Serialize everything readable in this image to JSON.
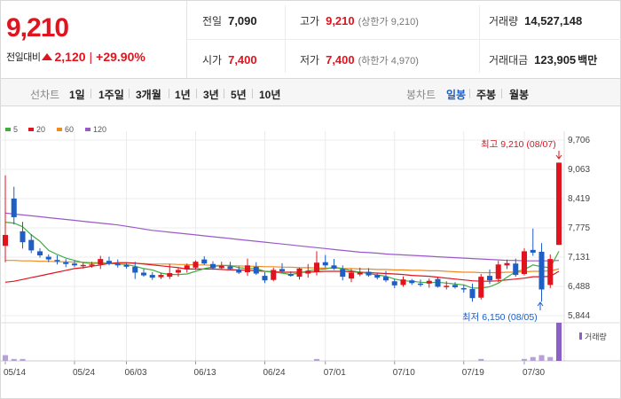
{
  "quote": {
    "price": "9,210",
    "change_label": "전일대비",
    "change_value": "2,120",
    "change_pct": "+29.90%",
    "prev_close_label": "전일",
    "prev_close": "7,090",
    "high_label": "고가",
    "high": "9,210",
    "upper_limit": "(상한가 9,210)",
    "volume_label": "거래량",
    "volume": "14,527,148",
    "open_label": "시가",
    "open": "7,400",
    "low_label": "저가",
    "low": "7,400",
    "lower_limit": "(하한가 4,970)",
    "trade_value_label": "거래대금",
    "trade_value": "123,905",
    "trade_value_unit": "백만"
  },
  "toolbar": {
    "line_chart_label": "선차트",
    "line_options": [
      "1일",
      "1주일",
      "3개월",
      "1년",
      "3년",
      "5년",
      "10년"
    ],
    "candle_chart_label": "봉차트",
    "candle_options": [
      "일봉",
      "주봉",
      "월봉"
    ],
    "selected_candle": "일봉"
  },
  "colors": {
    "up": "#e0141e",
    "down": "#1f5fc4",
    "ma5": "#3fae3f",
    "ma20": "#e0141e",
    "ma60": "#f08a1e",
    "ma120": "#9a59c8",
    "volume": "#b8a0d8",
    "volume_last": "#8a5fc8"
  },
  "chart_data": {
    "type": "candlestick",
    "legend": [
      "5",
      "20",
      "60",
      "120"
    ],
    "y_ticks": [
      "9,706",
      "9,063",
      "8,419",
      "7,775",
      "7,131",
      "6,488",
      "5,844"
    ],
    "ylim": [
      5844,
      9706
    ],
    "x_ticks": [
      "05/14",
      "05/24",
      "06/03",
      "06/13",
      "06/24",
      "07/01",
      "07/10",
      "07/19",
      "07/30"
    ],
    "x_tick_index": [
      0,
      8,
      14,
      22,
      30,
      37,
      45,
      53,
      60
    ],
    "high_annotation": "최고 9,210 (08/07)",
    "low_annotation": "최저 6,150 (08/05)",
    "volume_label": "거래량",
    "candles": [
      [
        7380,
        8930,
        7020,
        7620
      ],
      [
        8420,
        8680,
        7850,
        8010
      ],
      [
        7700,
        7910,
        7320,
        7460
      ],
      [
        7510,
        7640,
        7220,
        7280
      ],
      [
        7260,
        7330,
        7120,
        7170
      ],
      [
        7140,
        7190,
        7020,
        7080
      ],
      [
        7070,
        7170,
        6970,
        7040
      ],
      [
        7020,
        7090,
        6910,
        6980
      ],
      [
        6990,
        7060,
        6910,
        6950
      ],
      [
        6940,
        7010,
        6880,
        6960
      ],
      [
        6960,
        7030,
        6900,
        6970
      ],
      [
        6970,
        7160,
        6870,
        7090
      ],
      [
        7050,
        7140,
        6950,
        6990
      ],
      [
        6990,
        7080,
        6900,
        6950
      ],
      [
        6960,
        7000,
        6880,
        6920
      ],
      [
        6920,
        7030,
        6650,
        6790
      ],
      [
        6790,
        6870,
        6700,
        6730
      ],
      [
        6740,
        6800,
        6630,
        6680
      ],
      [
        6690,
        6790,
        6650,
        6740
      ],
      [
        6700,
        6980,
        6650,
        6780
      ],
      [
        6790,
        6900,
        6700,
        6850
      ],
      [
        6860,
        6990,
        6790,
        6950
      ],
      [
        6900,
        7060,
        6850,
        7030
      ],
      [
        7080,
        7150,
        6960,
        6990
      ],
      [
        6980,
        7040,
        6850,
        6890
      ],
      [
        6890,
        7030,
        6850,
        6940
      ],
      [
        6930,
        7030,
        6840,
        6870
      ],
      [
        6860,
        6930,
        6760,
        6790
      ],
      [
        6800,
        7100,
        6720,
        6950
      ],
      [
        6920,
        7020,
        6740,
        6770
      ],
      [
        6720,
        6800,
        6560,
        6620
      ],
      [
        6630,
        6900,
        6600,
        6850
      ],
      [
        6870,
        7000,
        6790,
        6820
      ],
      [
        6760,
        6820,
        6700,
        6720
      ],
      [
        6700,
        6900,
        6640,
        6880
      ],
      [
        6770,
        6980,
        6680,
        6830
      ],
      [
        6800,
        7260,
        6730,
        7010
      ],
      [
        7020,
        7180,
        6900,
        6950
      ],
      [
        6950,
        7090,
        6850,
        6880
      ],
      [
        6870,
        6950,
        6620,
        6700
      ],
      [
        6660,
        6870,
        6580,
        6790
      ],
      [
        6750,
        6900,
        6710,
        6800
      ],
      [
        6810,
        6890,
        6700,
        6730
      ],
      [
        6740,
        6790,
        6640,
        6680
      ],
      [
        6700,
        6830,
        6580,
        6620
      ],
      [
        6600,
        6650,
        6450,
        6510
      ],
      [
        6520,
        6710,
        6480,
        6640
      ],
      [
        6620,
        6650,
        6520,
        6560
      ],
      [
        6550,
        6640,
        6480,
        6530
      ],
      [
        6550,
        6660,
        6460,
        6610
      ],
      [
        6650,
        6700,
        6460,
        6480
      ],
      [
        6500,
        6600,
        6420,
        6500
      ],
      [
        6520,
        6580,
        6440,
        6470
      ],
      [
        6450,
        6520,
        6350,
        6420
      ],
      [
        6430,
        6550,
        6150,
        6230
      ],
      [
        6240,
        6760,
        6200,
        6700
      ],
      [
        6720,
        6860,
        6540,
        6620
      ],
      [
        6650,
        7050,
        6580,
        6970
      ],
      [
        6950,
        7080,
        6870,
        7000
      ],
      [
        6990,
        7100,
        6700,
        6740
      ],
      [
        6760,
        7330,
        6730,
        7260
      ],
      [
        7290,
        7760,
        7160,
        7230
      ],
      [
        7250,
        7440,
        6150,
        6420
      ],
      [
        6520,
        7190,
        6450,
        7090
      ],
      [
        7400,
        9210,
        7400,
        9210
      ]
    ],
    "ma5": [
      7900,
      7880,
      7800,
      7620,
      7480,
      7280,
      7190,
      7110,
      7060,
      7010,
      6990,
      7000,
      6990,
      6980,
      6970,
      6930,
      6880,
      6850,
      6780,
      6750,
      6750,
      6760,
      6820,
      6880,
      6920,
      6950,
      6950,
      6900,
      6880,
      6880,
      6820,
      6800,
      6780,
      6750,
      6780,
      6830,
      6850,
      6870,
      6910,
      6880,
      6830,
      6800,
      6770,
      6740,
      6710,
      6650,
      6610,
      6600,
      6580,
      6570,
      6580,
      6560,
      6540,
      6520,
      6450,
      6450,
      6480,
      6560,
      6690,
      6810,
      6860,
      6960,
      6920,
      6900,
      7260
    ],
    "ma20": [
      6580,
      6600,
      6640,
      6680,
      6720,
      6760,
      6800,
      6840,
      6880,
      6900,
      6930,
      6960,
      6990,
      7010,
      7010,
      7000,
      6980,
      6960,
      6940,
      6920,
      6900,
      6870,
      6870,
      6870,
      6870,
      6860,
      6850,
      6850,
      6840,
      6830,
      6820,
      6810,
      6800,
      6800,
      6800,
      6800,
      6810,
      6820,
      6820,
      6820,
      6810,
      6800,
      6790,
      6780,
      6770,
      6760,
      6750,
      6730,
      6720,
      6710,
      6690,
      6670,
      6650,
      6630,
      6610,
      6600,
      6600,
      6610,
      6630,
      6650,
      6670,
      6700,
      6700,
      6710,
      6820
    ],
    "ma60": [
      7060,
      7060,
      7050,
      7050,
      7040,
      7040,
      7030,
      7030,
      7020,
      7020,
      7010,
      7010,
      7000,
      7000,
      7000,
      6990,
      6990,
      6980,
      6980,
      6980,
      6970,
      6970,
      6960,
      6960,
      6950,
      6950,
      6940,
      6940,
      6930,
      6930,
      6920,
      6920,
      6910,
      6910,
      6900,
      6900,
      6890,
      6890,
      6890,
      6880,
      6880,
      6870,
      6870,
      6860,
      6860,
      6850,
      6850,
      6840,
      6840,
      6830,
      6830,
      6820,
      6810,
      6800,
      6800,
      6790,
      6790,
      6790,
      6800,
      6800,
      6810,
      6820,
      6820,
      6830,
      6870
    ],
    "ma120": [
      8100,
      8080,
      8060,
      8040,
      8020,
      8000,
      7980,
      7960,
      7940,
      7920,
      7900,
      7880,
      7860,
      7840,
      7810,
      7780,
      7750,
      7720,
      7700,
      7680,
      7660,
      7640,
      7620,
      7600,
      7580,
      7560,
      7540,
      7520,
      7500,
      7480,
      7460,
      7440,
      7420,
      7400,
      7380,
      7360,
      7340,
      7320,
      7300,
      7280,
      7260,
      7240,
      7230,
      7220,
      7200,
      7190,
      7180,
      7170,
      7160,
      7150,
      7140,
      7130,
      7120,
      7110,
      7100,
      7090,
      7080,
      7070,
      7060,
      7060,
      7050,
      7050,
      7050,
      7050,
      7060
    ],
    "volumes": [
      3,
      1,
      1,
      0,
      0,
      0,
      0,
      0,
      0,
      0,
      0,
      0,
      0,
      0,
      0,
      0,
      0,
      0,
      0,
      0,
      0,
      0,
      0,
      0,
      0,
      0,
      0,
      0,
      0,
      0,
      0,
      0,
      0,
      0,
      0,
      0,
      1,
      0,
      0,
      0,
      0,
      0,
      0,
      0,
      0,
      0,
      0,
      0,
      0,
      0,
      0,
      0,
      0,
      0,
      0,
      1,
      0,
      0,
      0,
      0,
      1,
      2,
      3,
      2,
      20
    ]
  }
}
